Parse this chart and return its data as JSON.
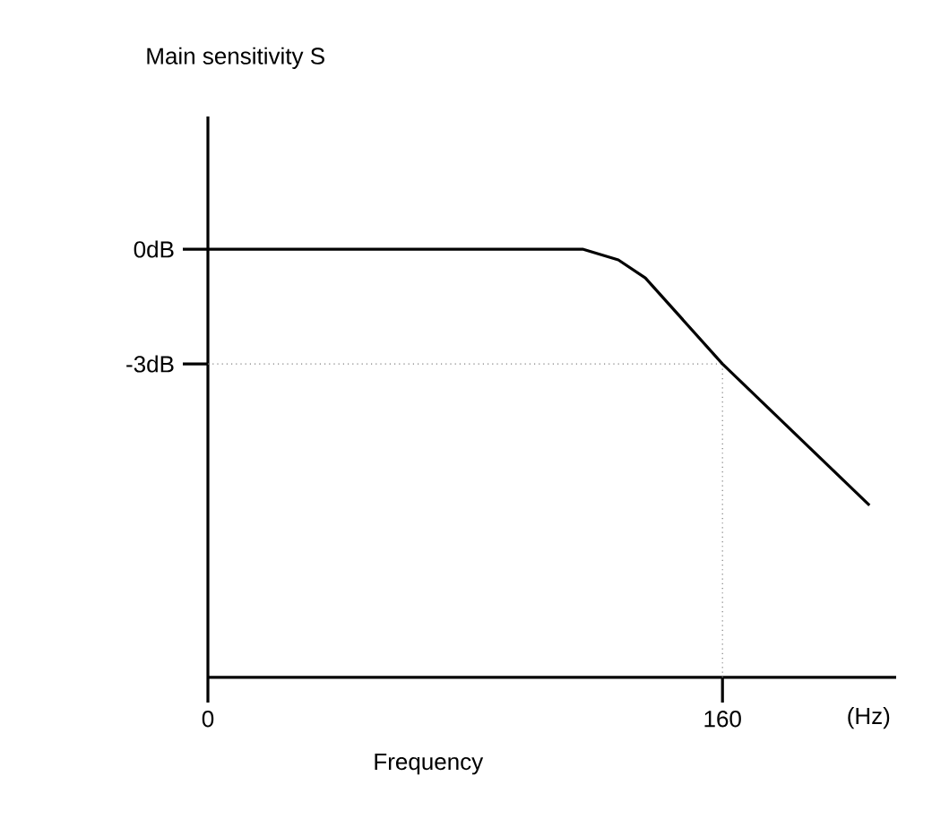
{
  "chart_data": {
    "type": "line",
    "xlabel": "Frequency",
    "ylabel": "Main sensitivity S",
    "annotations": [
      "(Hz)"
    ],
    "x": [
      0,
      116.5,
      127.6,
      136,
      160,
      205.7
    ],
    "series": [
      {
        "color": "#000000",
        "values": [
          0,
          0,
          -0.28,
          -0.75,
          -3,
          -6.7
        ]
      }
    ],
    "xlim": [
      0,
      214
    ],
    "ylim": [
      -11.2,
      3.47
    ],
    "xticks": [
      0,
      160
    ],
    "yticks": [
      {
        "value": 0,
        "label": "0dB"
      },
      {
        "value": -3,
        "label": "-3dB"
      }
    ],
    "ref_lines": [
      {
        "axis": "y",
        "value": -3,
        "line_style": "dotted",
        "color": "#808080"
      },
      {
        "axis": "x",
        "value": 160,
        "line_style": "dotted",
        "color": "#808080"
      }
    ],
    "marker": "none",
    "line_style": "solid"
  }
}
